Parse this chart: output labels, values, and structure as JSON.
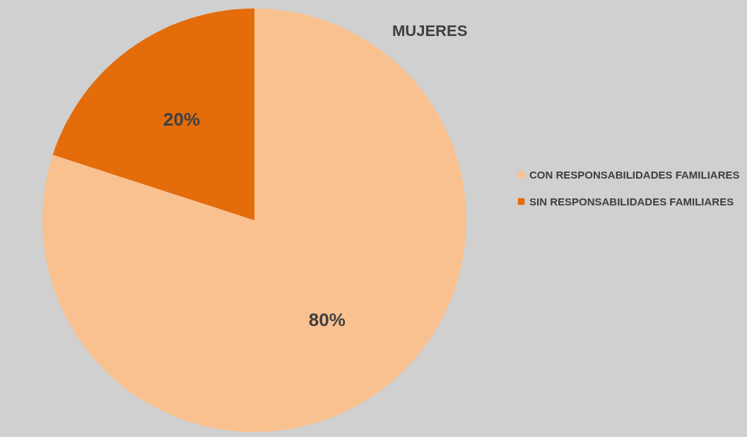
{
  "chart_data": {
    "type": "pie",
    "title": "MUJERES",
    "categories": [
      "CON RESPONSABILIDADES FAMILIARES",
      "SIN RESPONSABILIDADES FAMILIARES"
    ],
    "values": [
      80,
      20
    ],
    "value_labels": [
      "80%",
      "20%"
    ],
    "colors": [
      "#f9c18f",
      "#e46c0a"
    ],
    "legend": "right"
  }
}
